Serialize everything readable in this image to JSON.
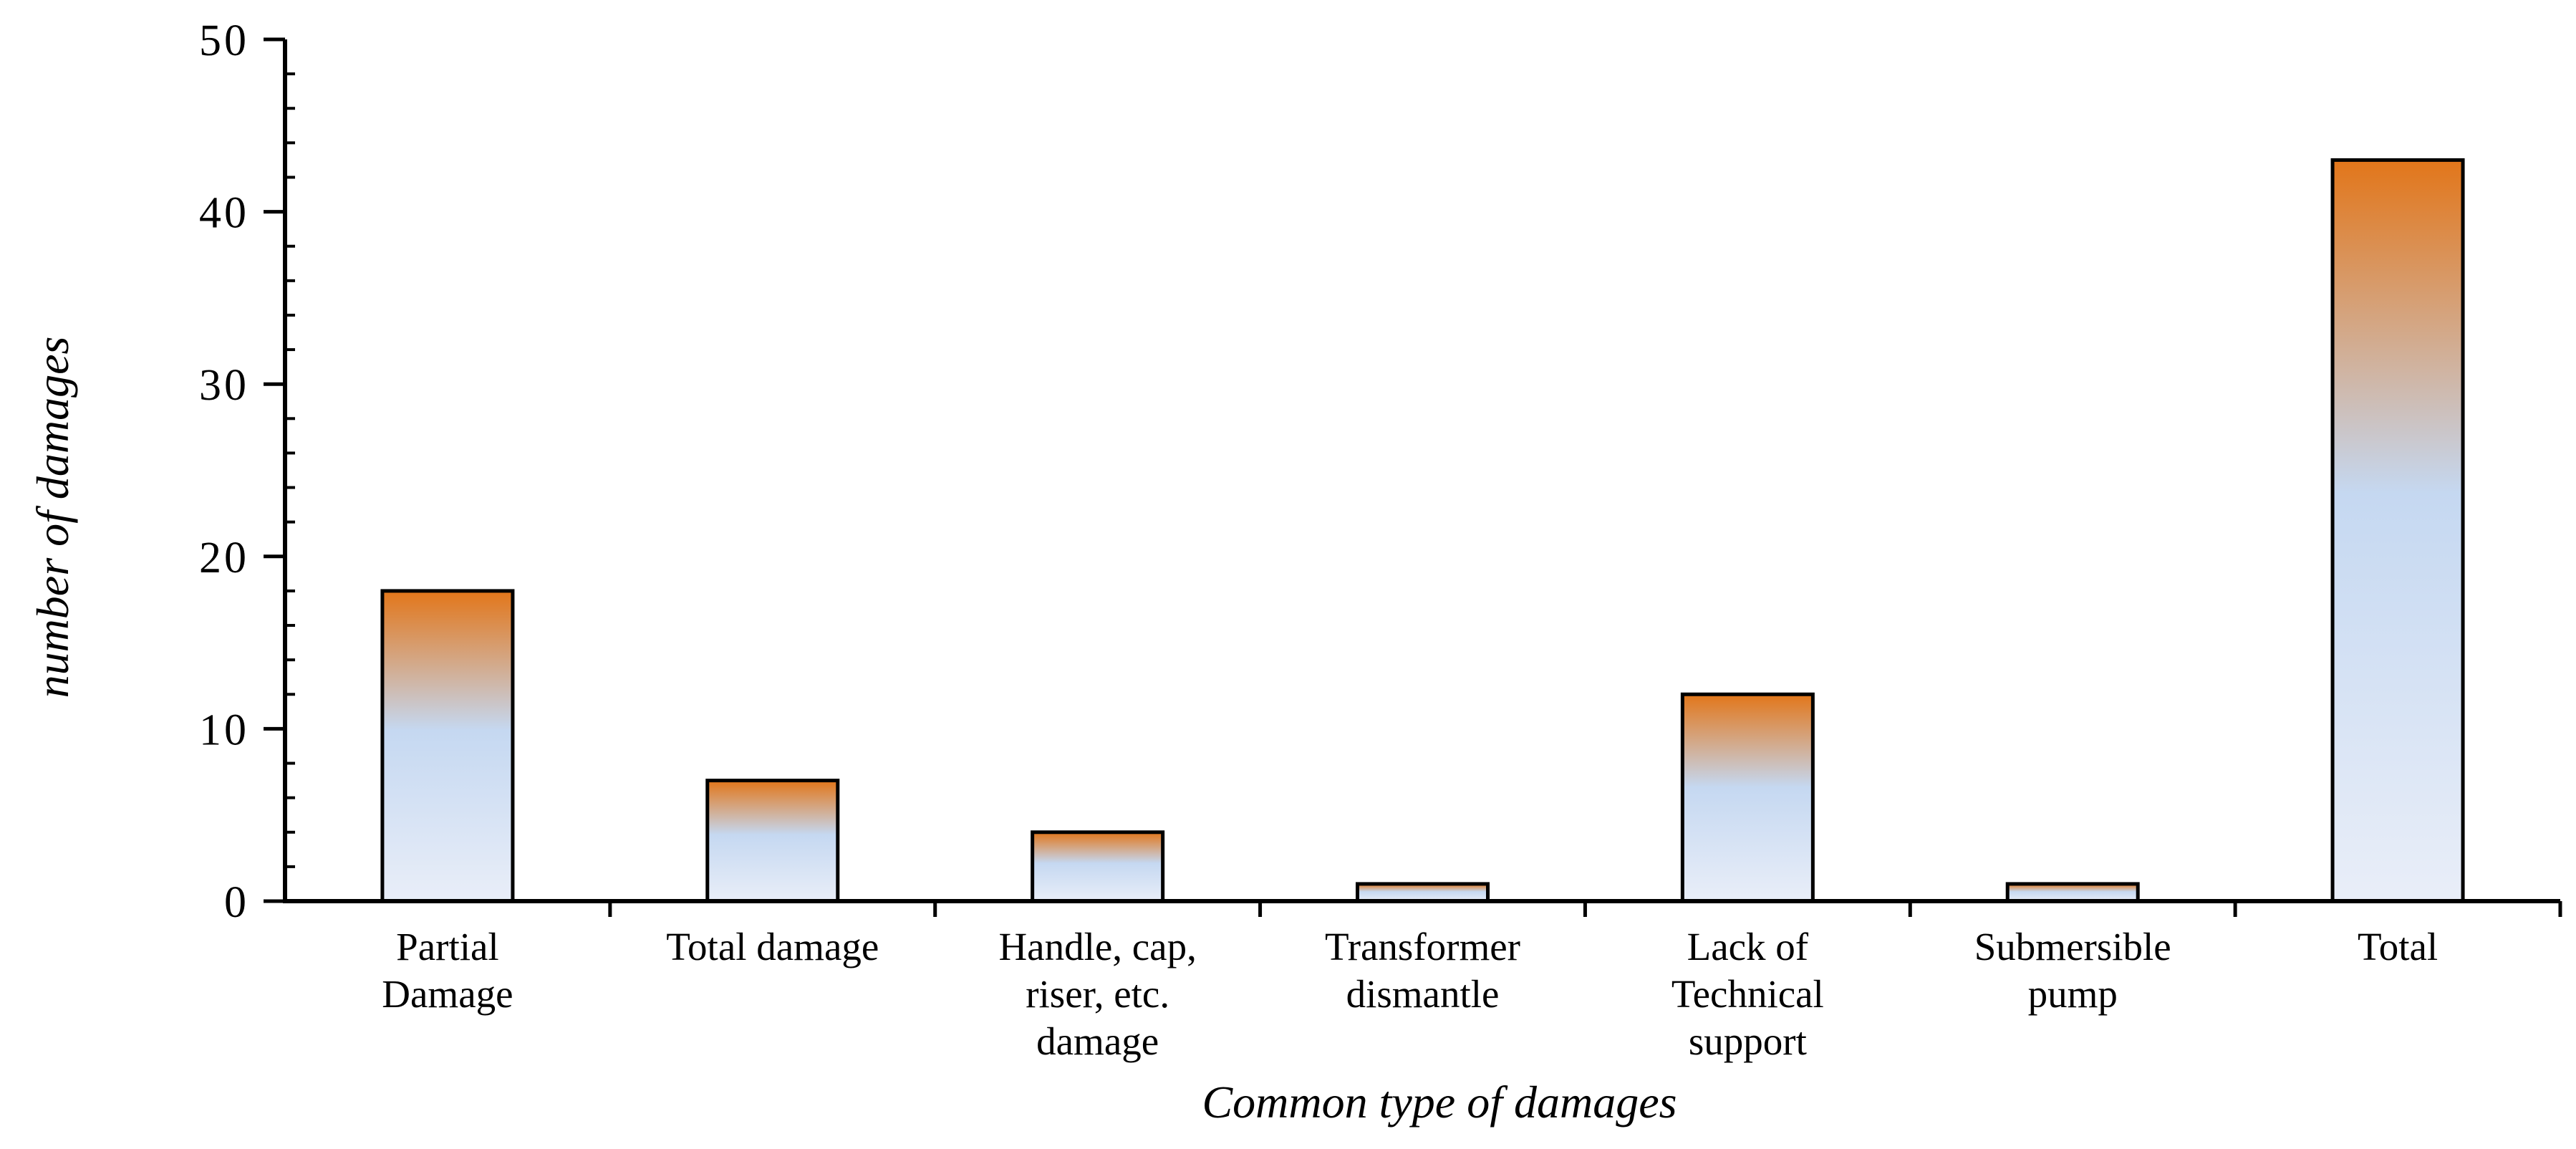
{
  "chart_data": {
    "type": "bar",
    "title": "",
    "xlabel": "Common type of damages",
    "ylabel": "number of damages",
    "ylim": [
      0,
      50
    ],
    "yticks": [
      0,
      10,
      20,
      30,
      40,
      50
    ],
    "grid": false,
    "legend": "none",
    "categories": [
      [
        "Partial",
        "Damage"
      ],
      [
        "Total damage"
      ],
      [
        "Handle, cap,",
        "riser, etc.",
        "damage"
      ],
      [
        "Transformer",
        "dismantle"
      ],
      [
        "Lack of",
        "Technical",
        "support"
      ],
      [
        "Submersible",
        "pump"
      ],
      [
        "Total"
      ]
    ],
    "values": [
      18,
      7,
      4,
      1,
      12,
      1,
      43
    ],
    "colors": {
      "bar_bottom": "#e9eef8",
      "bar_middle": "#c5d8f1",
      "bar_top": "#e2761a",
      "outline": "#000000"
    }
  }
}
